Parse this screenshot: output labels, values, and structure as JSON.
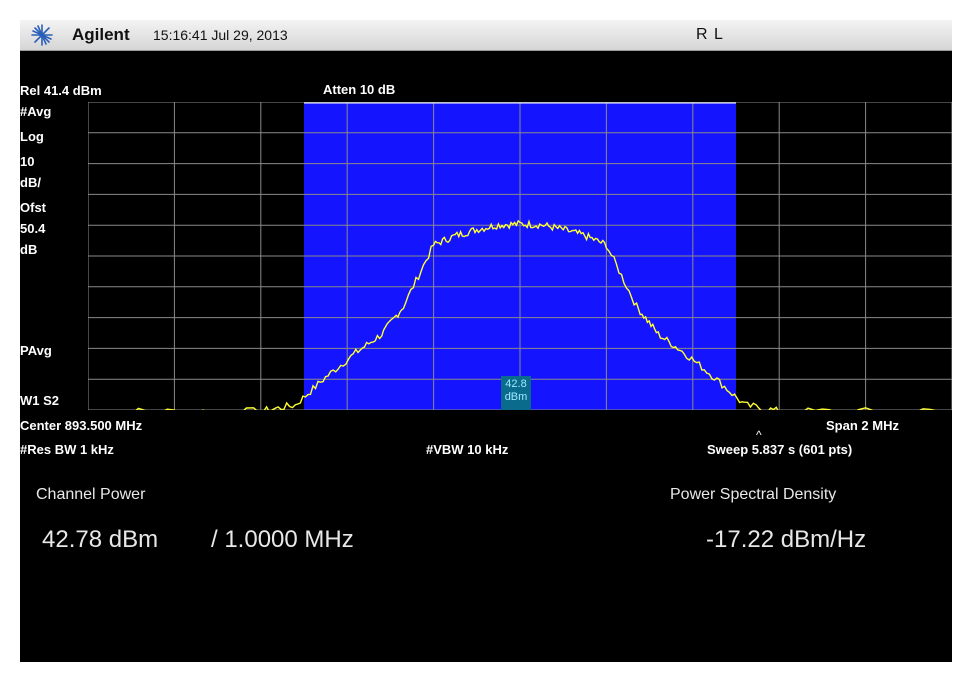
{
  "header": {
    "brand": "Agilent",
    "datetime": "15:16:41  Jul 29, 2013",
    "right_indicator": "R  L"
  },
  "left_annotations": {
    "ref": "Rel 41.4 dBm",
    "avg": "#Avg",
    "scale_type": "Log",
    "scale_value": "10",
    "scale_unit": "dB/",
    "offset_label": "Ofst",
    "offset_value": "50.4",
    "offset_unit": "dB",
    "pavg": "PAvg",
    "w1s2": "W1  S2"
  },
  "top_annotation": {
    "atten": "Atten 10 dB"
  },
  "marker": {
    "value": "42.8",
    "unit": "dBm"
  },
  "bottom_annotations": {
    "center": "Center 893.500 MHz",
    "span": "Span 2 MHz",
    "res_bw": "#Res BW 1 kHz",
    "vbw": "#VBW 10 kHz",
    "sweep": "Sweep 5.837 s (601 pts)"
  },
  "results": {
    "channel_power_label": "Channel Power",
    "channel_power_value": "42.78 dBm",
    "bandwidth_value": "/ 1.0000 MHz",
    "psd_label": "Power Spectral Density",
    "psd_value": "-17.22 dBm/Hz"
  },
  "colors": {
    "screen_bg": "#000000",
    "channel_band": "#1414ff",
    "trace": "#ffff33",
    "grid": "#8a8a8a"
  },
  "chart_data": {
    "type": "line",
    "center_mhz": 893.5,
    "span_mhz": 2,
    "x_unit": "MHz",
    "ref_level_dbm": 41.4,
    "scale_db_per_div": 10,
    "divisions_x": 10,
    "divisions_y": 10,
    "channel_band_mhz": [
      893.0,
      894.0
    ],
    "trace_points": [
      [
        892.5,
        -59
      ],
      [
        892.7,
        -59
      ],
      [
        892.9,
        -59
      ],
      [
        892.98,
        -57
      ],
      [
        893.05,
        -48
      ],
      [
        893.12,
        -40
      ],
      [
        893.18,
        -34
      ],
      [
        893.23,
        -25
      ],
      [
        893.3,
        -5
      ],
      [
        893.35,
        -2
      ],
      [
        893.4,
        0
      ],
      [
        893.45,
        1.5
      ],
      [
        893.5,
        1.8
      ],
      [
        893.55,
        1.5
      ],
      [
        893.6,
        0
      ],
      [
        893.65,
        -2
      ],
      [
        893.7,
        -5
      ],
      [
        893.77,
        -25
      ],
      [
        893.82,
        -34
      ],
      [
        893.88,
        -40
      ],
      [
        893.95,
        -48
      ],
      [
        894.02,
        -57
      ],
      [
        894.1,
        -59
      ],
      [
        894.3,
        -59
      ],
      [
        894.5,
        -59
      ]
    ]
  }
}
